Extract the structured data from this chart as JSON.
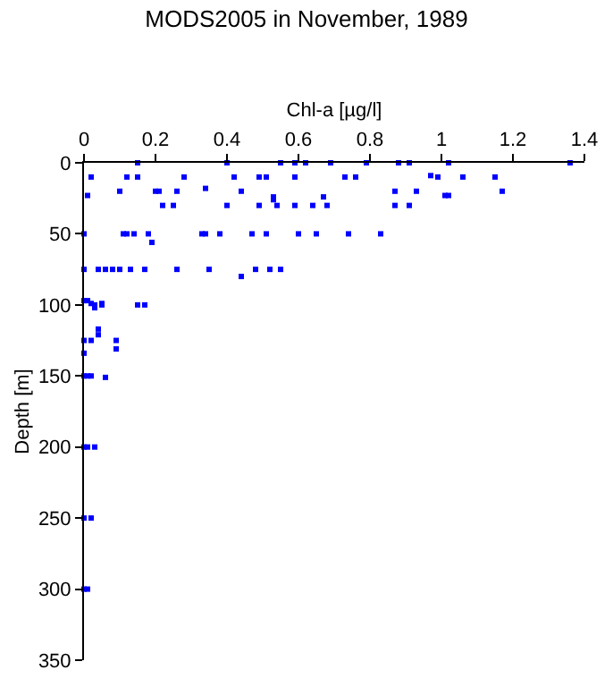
{
  "chart_data": {
    "type": "scatter",
    "title": "MODS2005 in November, 1989",
    "xlabel": "Chl-a [µg/l]",
    "ylabel": "Depth [m]",
    "series": [
      {
        "color": "#0000ff",
        "x": [
          0.15,
          0.4,
          0.55,
          0.59,
          0.62,
          0.69,
          0.79,
          0.88,
          0.91,
          1.02,
          1.36,
          0.02,
          0.12,
          0.15,
          0.28,
          0.42,
          0.49,
          0.51,
          0.59,
          0.73,
          0.76,
          0.97,
          0.99,
          1.06,
          1.15,
          0.01,
          0.1,
          0.2,
          0.21,
          0.26,
          0.34,
          0.44,
          0.53,
          0.67,
          0.87,
          0.93,
          1.17,
          1.01,
          1.02,
          0.22,
          0.25,
          0.4,
          0.49,
          0.54,
          0.59,
          0.64,
          0.68,
          0.87,
          0.91,
          0.53,
          0,
          0.11,
          0.12,
          0.14,
          0.18,
          0.33,
          0.34,
          0.38,
          0.47,
          0.51,
          0.6,
          0.65,
          0.74,
          0.83,
          0.19,
          0,
          0.04,
          0.06,
          0.08,
          0.1,
          0.13,
          0.17,
          0.26,
          0.35,
          0.48,
          0.52,
          0.55,
          0.44,
          0,
          0.01,
          0.02,
          0.03,
          0.03,
          0.05,
          0.05,
          0.15,
          0.17,
          0.04,
          0.04,
          0,
          0.02,
          0.09,
          0.09,
          0,
          0,
          0.01,
          0.02,
          0.06,
          0,
          0.01,
          0.03,
          0,
          0.02,
          0,
          0.01
        ],
        "values": [
          0,
          0,
          0,
          0,
          0,
          0,
          0,
          0,
          0,
          0,
          0,
          10,
          10,
          10,
          10,
          10,
          10,
          10,
          10,
          10,
          10,
          9,
          10,
          10,
          10,
          23,
          20,
          20,
          20,
          20,
          18,
          20,
          24,
          24,
          20,
          20,
          20,
          23,
          23,
          30,
          30,
          30,
          30,
          30,
          30,
          30,
          30,
          30,
          30,
          26,
          50,
          50,
          50,
          50,
          50,
          50,
          50,
          50,
          50,
          50,
          50,
          50,
          50,
          50,
          56,
          75,
          75,
          75,
          75,
          75,
          75,
          75,
          75,
          75,
          75,
          75,
          75,
          80,
          97,
          97,
          99,
          100,
          102,
          99,
          100,
          100,
          100,
          117,
          121,
          125,
          125,
          125,
          131,
          134,
          150,
          150,
          150,
          151,
          200,
          200,
          200,
          250,
          250,
          300,
          300
        ]
      }
    ],
    "xlim": [
      0,
      1.4
    ],
    "xticks": [
      0,
      0.2,
      0.4,
      0.6,
      0.8,
      1,
      1.2,
      1.4
    ],
    "ylim": [
      350,
      0
    ],
    "yticks": [
      0,
      50,
      100,
      150,
      200,
      250,
      300,
      350
    ],
    "marker": "square"
  }
}
